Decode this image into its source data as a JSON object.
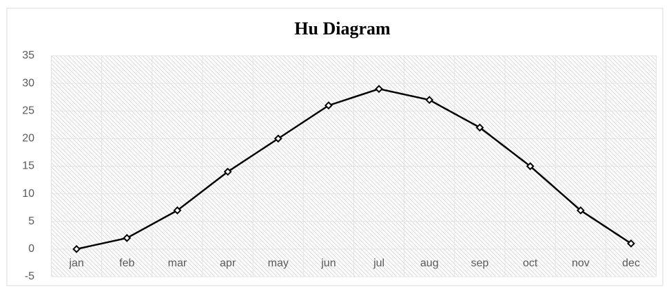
{
  "chart_data": {
    "type": "line",
    "title": "Hu Diagram",
    "categories": [
      "jan",
      "feb",
      "mar",
      "apr",
      "may",
      "jun",
      "jul",
      "aug",
      "sep",
      "oct",
      "nov",
      "dec"
    ],
    "series": [
      {
        "name": "Hu",
        "color": "#000000",
        "values": [
          0,
          2,
          7,
          14,
          20,
          26,
          29,
          27,
          22,
          15,
          7,
          1
        ]
      }
    ],
    "ylim": [
      -5,
      35
    ],
    "yticks": [
      -5,
      0,
      5,
      10,
      15,
      20,
      25,
      30,
      35
    ],
    "grid": true
  }
}
